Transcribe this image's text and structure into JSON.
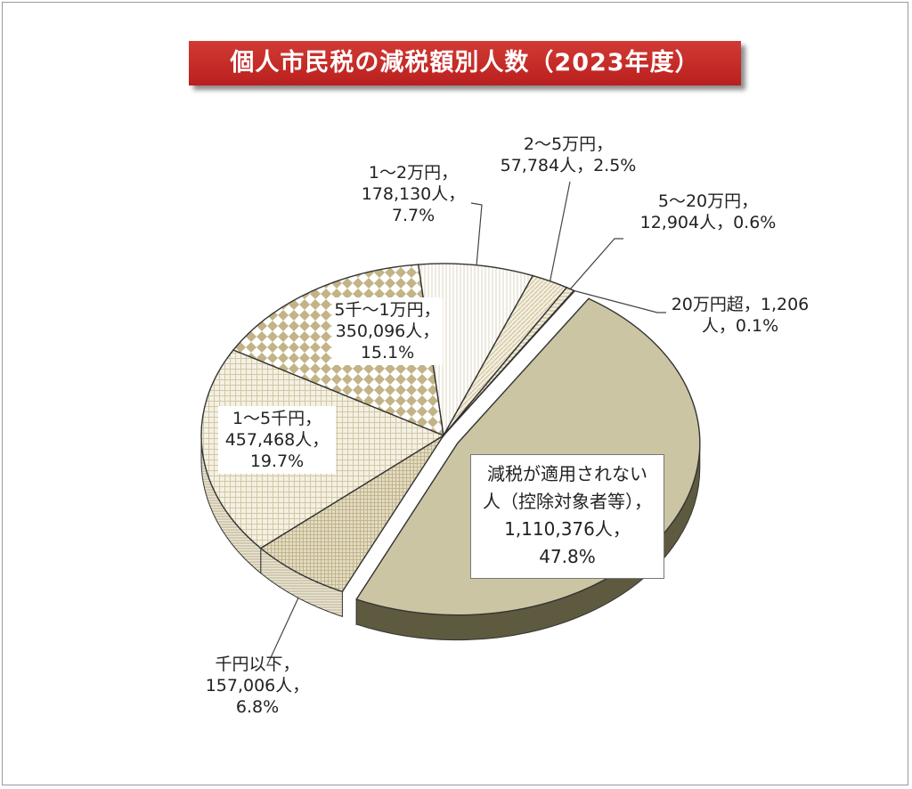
{
  "chart_data": {
    "type": "pie",
    "title": "個人市民税の減税額別人数（2023年度）",
    "unit": "人",
    "slices": [
      {
        "category": "減税が適用されない人（控除対象者等）",
        "label_lines": [
          "減税が適用されない",
          "人（控除対象者等），",
          "1,110,376人，",
          "47.8%"
        ],
        "value": 1110376,
        "percent": 47.8,
        "color": "#cbc5a3",
        "side": "#5e5a40",
        "pattern": "solid",
        "exploded": true
      },
      {
        "category": "千円以下",
        "label_lines": [
          "千円以下，",
          "157,006人，",
          "6.8%"
        ],
        "value": 157006,
        "percent": 6.8,
        "color": "#d8ceae",
        "side": "#c8bd95",
        "pattern": "fine-grid"
      },
      {
        "category": "1～5千円",
        "label_lines": [
          "1～5千円，",
          "457,468人，",
          "19.7%"
        ],
        "value": 457468,
        "percent": 19.7,
        "color": "#eee8d4",
        "side": "#e6dfc6",
        "pattern": "grid"
      },
      {
        "category": "5千～1万円",
        "label_lines": [
          "5千～1万円，",
          "350,096人，",
          "15.1%"
        ],
        "value": 350096,
        "percent": 15.1,
        "color": "#c7b98c",
        "side": "#b9ab7c",
        "pattern": "diamond"
      },
      {
        "category": "1～2万円",
        "label_lines": [
          "1～2万円，",
          "178,130人，",
          "7.7%"
        ],
        "value": 178130,
        "percent": 7.7,
        "color": "#f3f0e6",
        "side": "#e4dfcf",
        "pattern": "vertical"
      },
      {
        "category": "2～5万円",
        "label_lines": [
          "2～5万円，",
          "57,784人，2.5%"
        ],
        "value": 57784,
        "percent": 2.5,
        "color": "#e8e0c5",
        "side": "#d6cca8",
        "pattern": "diagonal"
      },
      {
        "category": "5～20万円",
        "label_lines": [
          "5～20万円，",
          "12,904人，0.6%"
        ],
        "value": 12904,
        "percent": 0.6,
        "color": "#ddd3b0",
        "side": "#c4b78e",
        "pattern": "horizontal"
      },
      {
        "category": "20万円超",
        "label_lines": [
          "20万円超，1,206",
          "人，0.1%"
        ],
        "value": 1206,
        "percent": 0.1,
        "color": "#c7bd93",
        "side": "#b3a97c",
        "pattern": "solid"
      }
    ]
  }
}
